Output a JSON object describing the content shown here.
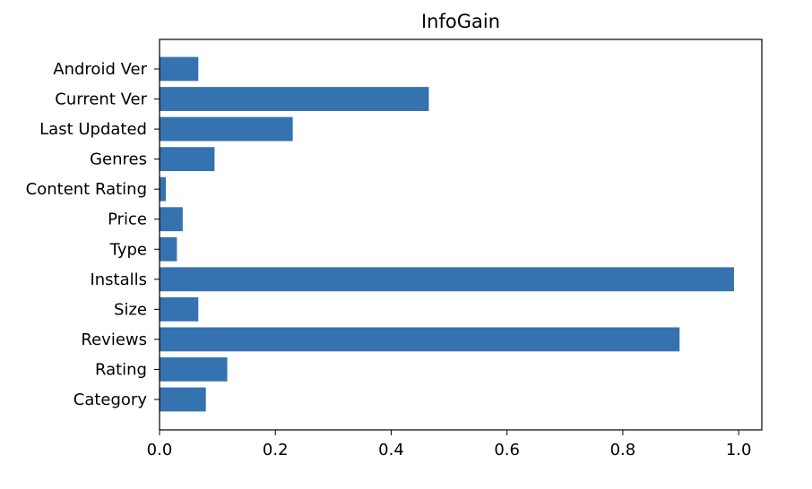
{
  "chart_data": {
    "type": "bar",
    "orientation": "horizontal",
    "title": "InfoGain",
    "xlabel": "",
    "ylabel": "",
    "categories": [
      "Category",
      "Rating",
      "Reviews",
      "Size",
      "Installs",
      "Type",
      "Price",
      "Content Rating",
      "Genres",
      "Last Updated",
      "Current Ver",
      "Android Ver"
    ],
    "values": [
      0.08,
      0.117,
      0.898,
      0.067,
      0.992,
      0.03,
      0.04,
      0.011,
      0.095,
      0.23,
      0.465,
      0.067
    ],
    "xlim": [
      0.0,
      1.04
    ],
    "xticks": [
      "0.0",
      "0.2",
      "0.4",
      "0.6",
      "0.8",
      "1.0"
    ],
    "xtick_values": [
      0.0,
      0.2,
      0.4,
      0.6,
      0.8,
      1.0
    ],
    "grid": false,
    "legend": "none",
    "bar_color": "#3572b0"
  }
}
